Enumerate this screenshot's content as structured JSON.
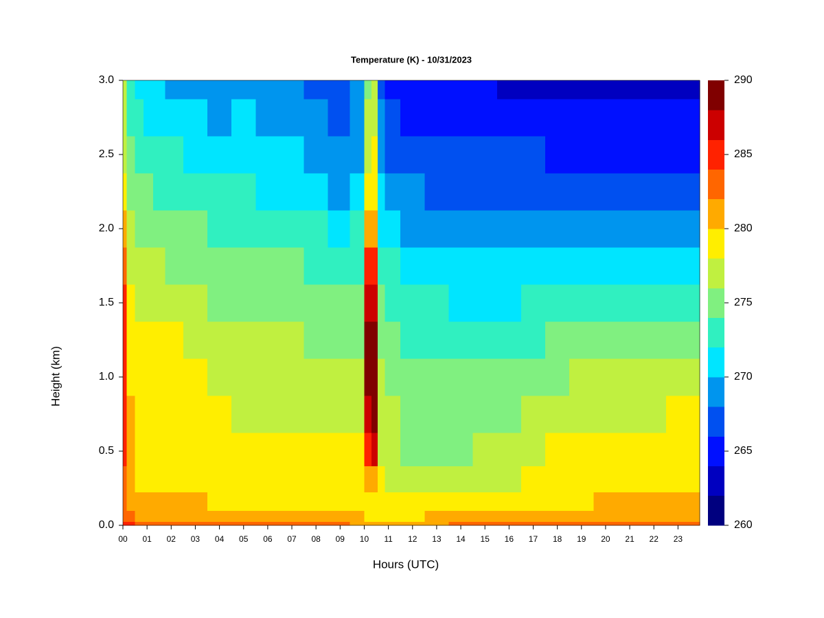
{
  "chart_data": {
    "type": "contour",
    "title": "Temperature (K) - 10/31/2023",
    "xlabel": "Hours (UTC)",
    "ylabel": "Height (km)",
    "xlim": [
      0,
      23.9
    ],
    "ylim": [
      0,
      3.0
    ],
    "xticks": [
      {
        "value": 0,
        "label": "00"
      },
      {
        "value": 1,
        "label": "01"
      },
      {
        "value": 2,
        "label": "02"
      },
      {
        "value": 3,
        "label": "03"
      },
      {
        "value": 4,
        "label": "04"
      },
      {
        "value": 5,
        "label": "05"
      },
      {
        "value": 6,
        "label": "06"
      },
      {
        "value": 7,
        "label": "07"
      },
      {
        "value": 8,
        "label": "08"
      },
      {
        "value": 9,
        "label": "09"
      },
      {
        "value": 10,
        "label": "10"
      },
      {
        "value": 11,
        "label": "11"
      },
      {
        "value": 12,
        "label": "12"
      },
      {
        "value": 13,
        "label": "13"
      },
      {
        "value": 14,
        "label": "14"
      },
      {
        "value": 15,
        "label": "15"
      },
      {
        "value": 16,
        "label": "16"
      },
      {
        "value": 17,
        "label": "17"
      },
      {
        "value": 18,
        "label": "18"
      },
      {
        "value": 19,
        "label": "19"
      },
      {
        "value": 20,
        "label": "20"
      },
      {
        "value": 21,
        "label": "21"
      },
      {
        "value": 22,
        "label": "22"
      },
      {
        "value": 23,
        "label": "23"
      }
    ],
    "yticks": [
      {
        "value": 0,
        "label": "0.0"
      },
      0.5,
      {
        "value": 1,
        "label": "1.0"
      },
      1.5,
      {
        "value": 2,
        "label": "2.0"
      },
      2.5,
      {
        "value": 3,
        "label": "3.0"
      }
    ],
    "x": [
      0,
      0.3,
      0.7,
      1,
      1.5,
      2,
      3,
      4,
      5,
      6,
      7,
      8,
      9,
      9.8,
      10.2,
      10.4,
      10.7,
      11,
      12,
      13,
      14,
      15,
      16,
      17,
      18,
      19,
      20,
      21,
      22,
      23,
      23.8
    ],
    "y": [
      0,
      0.05,
      0.15,
      0.3,
      0.5,
      0.75,
      1.0,
      1.25,
      1.5,
      1.75,
      2.0,
      2.25,
      2.5,
      2.75,
      3.0
    ],
    "z": [
      [
        284,
        283,
        282,
        282,
        284,
        285,
        285,
        285,
        284,
        283,
        281,
        279,
        277,
        277,
        276
      ],
      [
        284,
        282,
        281,
        280,
        281,
        280,
        279,
        279,
        278,
        277,
        276,
        275,
        274,
        273,
        272
      ],
      [
        283,
        281,
        280,
        279,
        279,
        279,
        279,
        278,
        277,
        276,
        275,
        274,
        273,
        272,
        271
      ],
      [
        283,
        281,
        280,
        279,
        279,
        279,
        279,
        278,
        277,
        276,
        275,
        274,
        272,
        271,
        270
      ],
      [
        283,
        281,
        280,
        279,
        279,
        279,
        279,
        278,
        277,
        276,
        275,
        273,
        272,
        271,
        270
      ],
      [
        282,
        281,
        280,
        279,
        279,
        279,
        278,
        278,
        277,
        275,
        274,
        273,
        272,
        270,
        269
      ],
      [
        282,
        281,
        280,
        279,
        279,
        279,
        278,
        277,
        276,
        275,
        274,
        272,
        271,
        270,
        269
      ],
      [
        282,
        281,
        279,
        279,
        279,
        278,
        277,
        276,
        275,
        274,
        273,
        272,
        270,
        269,
        268
      ],
      [
        282,
        281,
        279,
        279,
        278,
        277,
        277,
        276,
        275,
        274,
        273,
        272,
        271,
        270,
        269
      ],
      [
        282,
        281,
        279,
        279,
        278,
        277,
        277,
        276,
        275,
        274,
        273,
        271,
        270,
        269,
        268
      ],
      [
        282,
        281,
        279,
        279,
        278,
        277,
        277,
        276,
        275,
        274,
        272,
        271,
        270,
        269,
        268
      ],
      [
        282,
        280,
        279,
        279,
        278,
        277,
        276,
        275,
        274,
        273,
        272,
        270,
        269,
        268,
        267
      ],
      [
        282,
        280,
        279,
        279,
        278,
        277,
        276,
        275,
        274,
        273,
        271,
        269,
        268,
        267,
        267
      ],
      [
        281,
        280,
        279,
        278,
        278,
        277,
        276,
        275,
        274,
        273,
        272,
        270,
        269,
        268,
        268
      ],
      [
        280,
        279,
        279,
        281,
        285,
        287,
        288,
        288,
        286,
        284,
        280,
        278,
        277,
        276,
        275
      ],
      [
        280,
        279,
        279,
        281,
        286,
        288,
        288,
        288,
        287,
        285,
        281,
        279,
        278,
        277,
        277
      ],
      [
        280,
        279,
        279,
        278,
        277,
        277,
        276,
        275,
        274,
        272,
        271,
        270,
        269,
        268,
        266
      ],
      [
        280,
        279,
        278,
        277,
        276,
        276,
        275,
        274,
        273,
        272,
        270,
        269,
        267,
        266,
        265
      ],
      [
        281,
        279,
        278,
        276,
        275,
        275,
        274,
        273,
        272,
        271,
        269,
        268,
        267,
        265,
        264
      ],
      [
        281,
        280,
        278,
        276,
        275,
        275,
        274,
        273,
        272,
        270,
        269,
        267,
        266,
        265,
        264
      ],
      [
        282,
        280,
        278,
        277,
        275,
        275,
        274,
        273,
        271,
        270,
        268,
        267,
        266,
        265,
        264
      ],
      [
        282,
        281,
        279,
        277,
        276,
        275,
        274,
        273,
        271,
        270,
        268,
        267,
        266,
        265,
        264
      ],
      [
        283,
        281,
        279,
        277,
        276,
        275,
        274,
        273,
        271,
        270,
        268,
        267,
        266,
        264,
        263
      ],
      [
        283,
        281,
        279,
        278,
        277,
        276,
        275,
        273,
        272,
        270,
        269,
        267,
        266,
        264,
        263
      ],
      [
        282,
        281,
        279,
        279,
        278,
        277,
        275,
        274,
        272,
        270,
        268,
        267,
        265,
        264,
        263
      ],
      [
        282,
        281,
        279,
        279,
        278,
        277,
        276,
        274,
        272,
        270,
        268,
        266,
        265,
        264,
        263
      ],
      [
        282,
        281,
        280,
        279,
        279,
        277,
        276,
        274,
        272,
        270,
        268,
        266,
        265,
        264,
        263
      ],
      [
        282,
        281,
        280,
        279,
        279,
        277,
        276,
        274,
        272,
        270,
        268,
        266,
        265,
        264,
        262
      ],
      [
        283,
        281,
        280,
        279,
        279,
        277,
        276,
        274,
        273,
        270,
        268,
        267,
        265,
        264,
        262
      ],
      [
        283,
        281,
        280,
        279,
        279,
        278,
        276,
        274,
        272,
        270,
        268,
        267,
        265,
        264,
        262
      ],
      [
        282,
        281,
        280,
        279,
        279,
        278,
        276,
        274,
        272,
        270,
        269,
        267,
        265,
        264,
        263
      ]
    ],
    "levels": [
      260,
      262,
      264,
      266,
      268,
      270,
      272,
      274,
      276,
      278,
      280,
      282,
      284,
      286,
      288,
      290
    ],
    "colors": [
      "#00007f",
      "#0000c0",
      "#0010ff",
      "#0050f0",
      "#0095ee",
      "#00e5ff",
      "#30f0c0",
      "#80f080",
      "#c0f040",
      "#ffee00",
      "#ffaa00",
      "#ff6600",
      "#ff2200",
      "#cc0000",
      "#800000"
    ],
    "colorbar_ticks": [
      260,
      265,
      270,
      275,
      280,
      285,
      290
    ]
  }
}
